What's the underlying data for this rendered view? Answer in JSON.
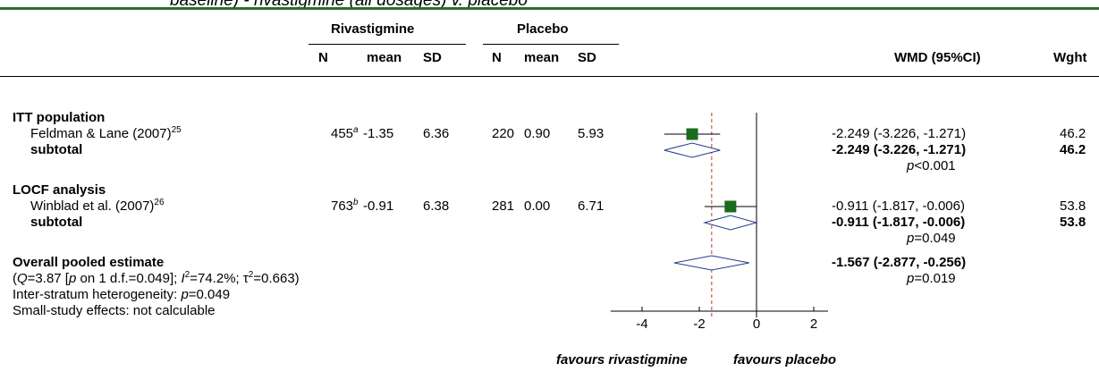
{
  "header_fragment": "baseline) - rivastigmine (all dosages) v. placebo",
  "columns": {
    "group1": "Rivastigmine",
    "group2": "Placebo",
    "n": "N",
    "mean": "mean",
    "sd": "SD",
    "wmd": "WMD (95%CI)",
    "wght": "Wght"
  },
  "sections": [
    {
      "label": "ITT population",
      "study": {
        "name": "Feldman & Lane (2007)",
        "ref": "25",
        "n1": "455",
        "n1_note": "a",
        "mean1": "-1.35",
        "sd1": "6.36",
        "n2": "220",
        "mean2": "0.90",
        "sd2": "5.93",
        "wmd_text": "-2.249 (-3.226, -1.271)",
        "weight": "46.2"
      },
      "subtotal": {
        "label": "subtotal",
        "wmd_text": "-2.249  (-3.226, -1.271)",
        "weight": "46.2",
        "p_prefix": "p",
        "p_rest": "<0.001"
      }
    },
    {
      "label": "LOCF analysis",
      "study": {
        "name": "Winblad et al.  (2007)",
        "ref": "26",
        "n1": "763",
        "n1_note": "b",
        "mean1": "-0.91",
        "sd1": "6.38",
        "n2": "281",
        "mean2": "0.00",
        "sd2": "6.71",
        "wmd_text": "-0.911 (-1.817, -0.006)",
        "weight": "53.8"
      },
      "subtotal": {
        "label": "subtotal",
        "wmd_text": "-0.911  (-1.817, -0.006)",
        "weight": "53.8",
        "p_prefix": "p",
        "p_rest": "=0.049"
      }
    }
  ],
  "overall": {
    "label": "Overall pooled estimate",
    "wmd_text": "-1.567  (-2.877, -0.256)",
    "p_prefix": "p",
    "p_rest": "=0.019",
    "het_open": "(",
    "het_q": "Q",
    "het_q_rest": "=3.87 [",
    "het_p": "p",
    "het_p_rest": " on 1 d.f.=0.049]; ",
    "het_i": "I",
    "het_i_sup": "2",
    "het_i_rest": "=74.2%; τ",
    "het_tau_sup": "2",
    "het_tau_rest": "=0.663)",
    "inter_label": "Inter-stratum heterogeneity: ",
    "inter_p": "p",
    "inter_rest": "=0.049",
    "small_study": "Small-study effects: not calculable"
  },
  "favours": {
    "left": "favours rivastigmine",
    "right": "favours placebo"
  },
  "chart_data": {
    "type": "forest",
    "x_ticks": [
      -4,
      -2,
      0,
      2
    ],
    "xlim": [
      -5.1,
      2.5
    ],
    "null_line": 0,
    "pooled_line": -1.567,
    "studies": [
      {
        "name": "Feldman & Lane (2007)",
        "estimate": -2.249,
        "ci": [
          -3.226,
          -1.271
        ],
        "weight": 46.2
      },
      {
        "name": "Winblad et al.  (2007)",
        "estimate": -0.911,
        "ci": [
          -1.817,
          -0.006
        ],
        "weight": 53.8
      }
    ],
    "diamonds": [
      {
        "name": "subtotal ITT population",
        "estimate": -2.249,
        "ci": [
          -3.226,
          -1.271
        ]
      },
      {
        "name": "subtotal LOCF analysis",
        "estimate": -0.911,
        "ci": [
          -1.817,
          -0.006
        ]
      },
      {
        "name": "Overall pooled estimate",
        "estimate": -1.567,
        "ci": [
          -2.877,
          -0.256
        ]
      }
    ],
    "colors": {
      "square": "#1a6b1a",
      "pooled_line": "#c0392b",
      "bar": "#2e6b2e"
    }
  }
}
